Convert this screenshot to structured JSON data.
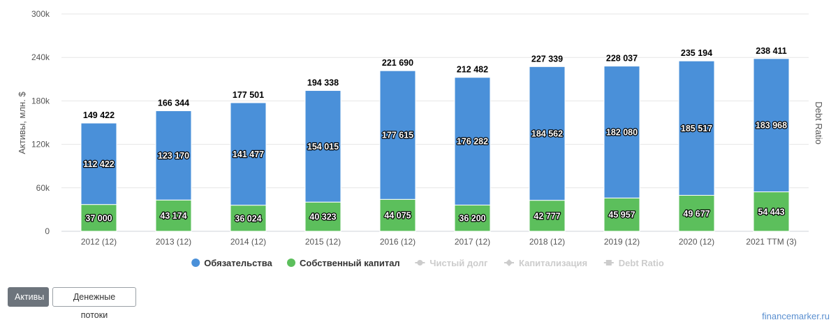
{
  "chart_data": {
    "type": "bar",
    "stacked": true,
    "categories": [
      "2012 (12)",
      "2013 (12)",
      "2014 (12)",
      "2015 (12)",
      "2016 (12)",
      "2017 (12)",
      "2018 (12)",
      "2019 (12)",
      "2020 (12)",
      "2021 TTM (3)"
    ],
    "series": [
      {
        "name": "Обязательства",
        "color": "#4a90d9",
        "values": [
          112422,
          123170,
          141477,
          154015,
          177615,
          176282,
          184562,
          182080,
          185517,
          183968
        ],
        "labels": [
          "112 422",
          "123 170",
          "141 477",
          "154 015",
          "177 615",
          "176 282",
          "184 562",
          "182 080",
          "185 517",
          "183 968"
        ]
      },
      {
        "name": "Собственный капитал",
        "color": "#5cbf5c",
        "values": [
          37000,
          43174,
          36024,
          40323,
          44075,
          36200,
          42777,
          45957,
          49677,
          54443
        ],
        "labels": [
          "37 000",
          "43 174",
          "36 024",
          "40 323",
          "44 075",
          "36 200",
          "42 777",
          "45 957",
          "49 677",
          "54 443"
        ]
      }
    ],
    "totals": [
      149422,
      166344,
      177501,
      194338,
      221690,
      212482,
      227339,
      228037,
      235194,
      238411
    ],
    "total_labels": [
      "149 422",
      "166 344",
      "177 501",
      "194 338",
      "221 690",
      "212 482",
      "227 339",
      "228 037",
      "235 194",
      "238 411"
    ],
    "ylabel": "Активы, млн. $",
    "y2label": "Debt Ratio",
    "ylim": [
      0,
      300000
    ],
    "yticks": [
      0,
      60000,
      120000,
      180000,
      240000,
      300000
    ],
    "ytick_labels": [
      "0",
      "60k",
      "120k",
      "180k",
      "240k",
      "300k"
    ],
    "grid": true,
    "legend": {
      "placement": "bottom-center",
      "items": [
        {
          "label": "Обязательства",
          "color": "#4a90d9",
          "marker": "circle",
          "active": true
        },
        {
          "label": "Собственный капитал",
          "color": "#5cbf5c",
          "marker": "circle",
          "active": true
        },
        {
          "label": "Чистый долг",
          "color": "#cccccc",
          "marker": "line-circle",
          "active": false
        },
        {
          "label": "Капитализация",
          "color": "#cccccc",
          "marker": "line-diamond",
          "active": false
        },
        {
          "label": "Debt Ratio",
          "color": "#cccccc",
          "marker": "line-square",
          "active": false
        }
      ]
    }
  },
  "tabs": {
    "assets_label": "Активы",
    "cash_flows_label": "Денежные потоки"
  },
  "credit": "financemarker.ru"
}
